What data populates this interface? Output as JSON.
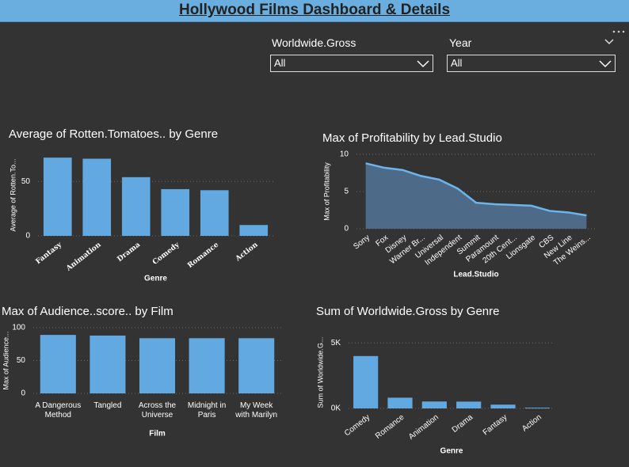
{
  "header": {
    "title": "Hollywood Films Dashboard & Details"
  },
  "filters": [
    {
      "label": "Worldwide.Gross",
      "value": "All"
    },
    {
      "label": "Year",
      "value": "All"
    }
  ],
  "chart_data": [
    {
      "type": "bar",
      "title": "Average of Rotten.Tomatoes.. by Genre",
      "x_label": "Genre",
      "y_label": "Average of Rotten.To...",
      "categories": [
        "Fantasy",
        "Animation",
        "Drama",
        "Comedy",
        "Romance",
        "Action"
      ],
      "values": [
        72,
        71,
        54,
        43,
        42,
        10
      ],
      "color": "#62a9e2",
      "ylim": [
        0,
        75
      ],
      "yticks": [
        0,
        50
      ],
      "grid": true
    },
    {
      "type": "area",
      "title": "Max of Profitability by Lead.Studio",
      "x_label": "Lead.Studio",
      "y_label": "Max of Profitability",
      "categories": [
        "Sony",
        "Fox",
        "Disney",
        "Warner Br...",
        "Universal",
        "Independent",
        "Summit",
        "Paramount",
        "20th Cent...",
        "Lionsgate",
        "CBS",
        "New Line",
        "The Weins..."
      ],
      "values": [
        8.8,
        8.2,
        7.9,
        7.1,
        6.6,
        5.4,
        3.5,
        3.3,
        3.2,
        3.1,
        2.4,
        2.2,
        1.8
      ],
      "color": "#6cb4ec",
      "ylim": [
        0,
        10
      ],
      "yticks": [
        0,
        5,
        10
      ],
      "grid": true
    },
    {
      "type": "bar",
      "title": "Max of Audience..score.. by Film",
      "x_label": "Film",
      "y_label": "Max of Audience...",
      "categories": [
        "A Dangerous Method",
        "Tangled",
        "Across the Universe",
        "Midnight in Paris",
        "My Week with Marilyn"
      ],
      "values": [
        89,
        88,
        84,
        84,
        84
      ],
      "color": "#62a9e2",
      "ylim": [
        0,
        100
      ],
      "yticks": [
        0,
        50,
        100
      ],
      "grid": true
    },
    {
      "type": "bar",
      "title": "Sum of Worldwide.Gross by Genre",
      "x_label": "Genre",
      "y_label": "Sum of Worldwide.G...",
      "categories": [
        "Comedy",
        "Romance",
        "Animation",
        "Drama",
        "Fantasy",
        "Action"
      ],
      "values": [
        4000,
        820,
        530,
        520,
        290,
        60
      ],
      "color": "#62a9e2",
      "ylim": [
        0,
        5500
      ],
      "yticks": [
        {
          "value": 0,
          "label": "0K"
        },
        {
          "value": 5000,
          "label": "5K"
        }
      ],
      "grid": true
    }
  ]
}
